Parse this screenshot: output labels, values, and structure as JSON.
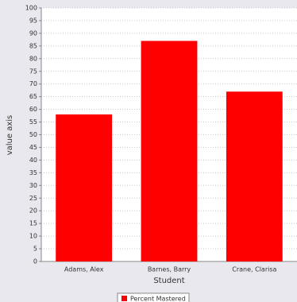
{
  "chart_data": {
    "type": "bar",
    "x_label": "Student",
    "y_label": "value axis",
    "categories": [
      "Adams, Alex",
      "Barnes, Barry",
      "Crane, Clarisa"
    ],
    "series": [
      {
        "name": "Percent Mastered",
        "color": "#ff0000",
        "values": [
          58,
          87,
          67
        ]
      }
    ],
    "ylim": [
      0,
      100
    ],
    "yticks": [
      0,
      5,
      10,
      15,
      20,
      25,
      30,
      35,
      40,
      45,
      50,
      55,
      60,
      65,
      70,
      75,
      80,
      85,
      90,
      95,
      100
    ],
    "grid": true
  }
}
